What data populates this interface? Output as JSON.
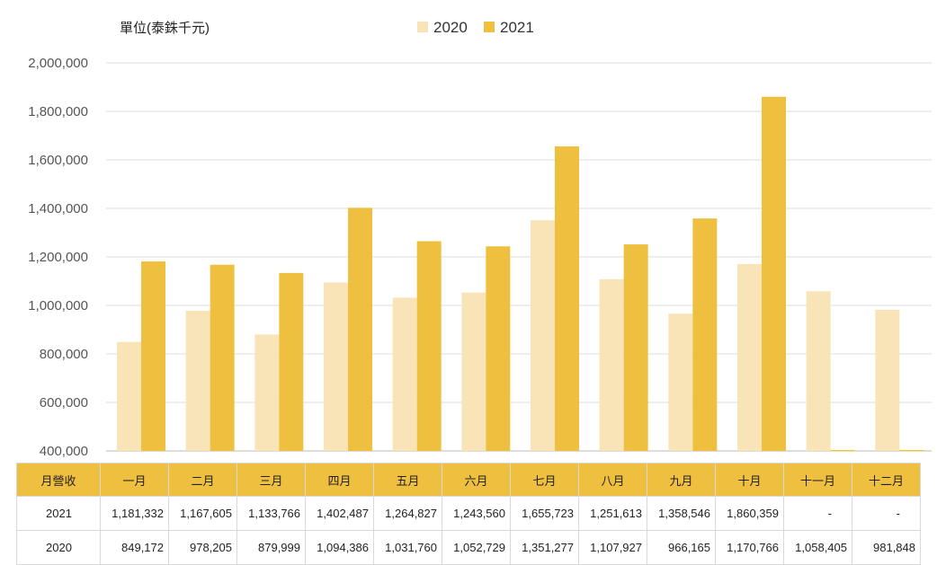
{
  "chart_data": {
    "type": "bar",
    "unit_label": "單位(泰銖千元)",
    "categories": [
      "一月",
      "二月",
      "三月",
      "四月",
      "五月",
      "六月",
      "七月",
      "八月",
      "九月",
      "十月",
      "十一月",
      "十二月"
    ],
    "series": [
      {
        "name": "2020",
        "color": "#f9e4b7",
        "values": [
          849172,
          978205,
          879999,
          1094386,
          1031760,
          1052729,
          1351277,
          1107927,
          966165,
          1170766,
          1058405,
          981848
        ]
      },
      {
        "name": "2021",
        "color": "#efc040",
        "values": [
          1181332,
          1167605,
          1133766,
          1402487,
          1264827,
          1243560,
          1655723,
          1251613,
          1358546,
          1860359,
          null,
          null
        ]
      }
    ],
    "ylim": [
      400000,
      2000000
    ],
    "yticks": [
      "2,000,000",
      "1,800,000",
      "1,600,000",
      "1,400,000",
      "1,200,000",
      "1,000,000",
      "800,000",
      "600,000",
      "400,000"
    ],
    "grid": true,
    "legend_position": "top"
  },
  "table": {
    "header_label": "月營收",
    "months": [
      "一月",
      "二月",
      "三月",
      "四月",
      "五月",
      "六月",
      "七月",
      "八月",
      "九月",
      "十月",
      "十一月",
      "十二月"
    ],
    "rows": [
      {
        "year": "2021",
        "values": [
          "1,181,332",
          "1,167,605",
          "1,133,766",
          "1,402,487",
          "1,264,827",
          "1,243,560",
          "1,655,723",
          "1,251,613",
          "1,358,546",
          "1,860,359",
          "-",
          "-"
        ]
      },
      {
        "year": "2020",
        "values": [
          "849,172",
          "978,205",
          "879,999",
          "1,094,386",
          "1,031,760",
          "1,052,729",
          "1,351,277",
          "1,107,927",
          "966,165",
          "1,170,766",
          "1,058,405",
          "981,848"
        ]
      }
    ]
  }
}
